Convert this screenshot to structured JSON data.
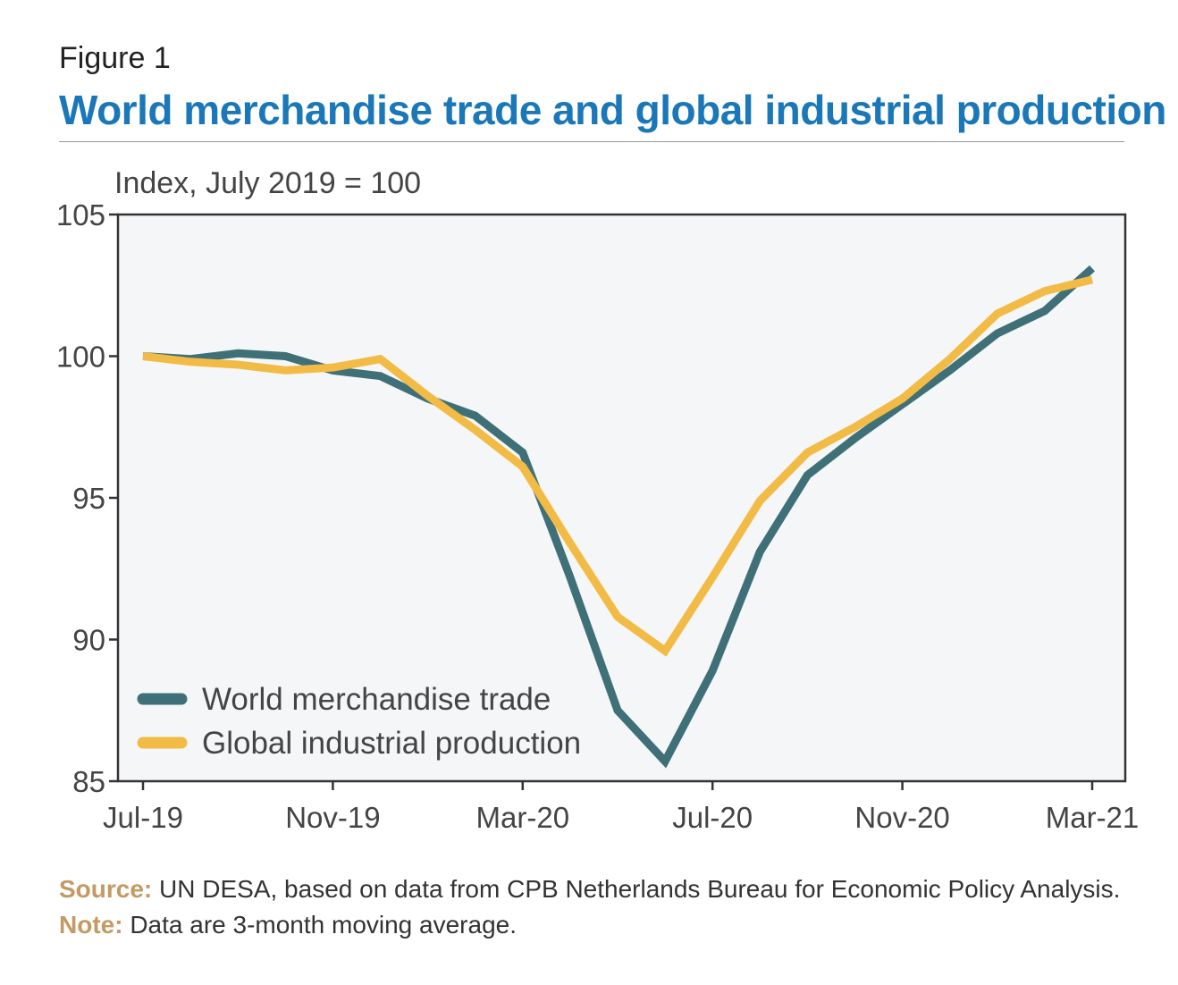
{
  "header": {
    "figure_label": "Figure 1",
    "title": "World merchandise trade and global industrial production"
  },
  "chart_data": {
    "type": "line",
    "ylabel": "Index, July 2019 = 100",
    "ylim": [
      85,
      105
    ],
    "yticks": [
      85,
      90,
      95,
      100,
      105
    ],
    "xticklabels": [
      "Jul-19",
      "Nov-19",
      "Mar-20",
      "Jul-20",
      "Nov-20",
      "Mar-21"
    ],
    "x": [
      "Jul-19",
      "Aug-19",
      "Sep-19",
      "Oct-19",
      "Nov-19",
      "Dec-19",
      "Jan-20",
      "Feb-20",
      "Mar-20",
      "Apr-20",
      "May-20",
      "Jun-20",
      "Jul-20",
      "Aug-20",
      "Sep-20",
      "Oct-20",
      "Nov-20",
      "Dec-20",
      "Jan-21",
      "Feb-21",
      "Mar-21"
    ],
    "grid": false,
    "legend_position": "bottom-left",
    "series": [
      {
        "name": "World merchandise trade",
        "color": "#3f7078",
        "values": [
          100.0,
          99.9,
          100.1,
          100.0,
          99.5,
          99.3,
          98.5,
          97.9,
          96.6,
          92.2,
          87.5,
          85.7,
          88.9,
          93.1,
          95.8,
          97.1,
          98.3,
          99.5,
          100.8,
          101.6,
          103.1
        ]
      },
      {
        "name": "Global industrial production",
        "color": "#f2bb45",
        "values": [
          100.0,
          99.8,
          99.7,
          99.5,
          99.6,
          99.9,
          98.6,
          97.4,
          96.1,
          93.4,
          90.8,
          89.6,
          92.2,
          94.9,
          96.6,
          97.5,
          98.5,
          99.9,
          101.5,
          102.3,
          102.7
        ]
      }
    ]
  },
  "footer": {
    "source_label": "Source:",
    "source_text": " UN DESA, based on data from CPB Netherlands Bureau for Economic Policy Analysis.",
    "note_label": "Note:",
    "note_text": " Data are 3-month moving average."
  }
}
